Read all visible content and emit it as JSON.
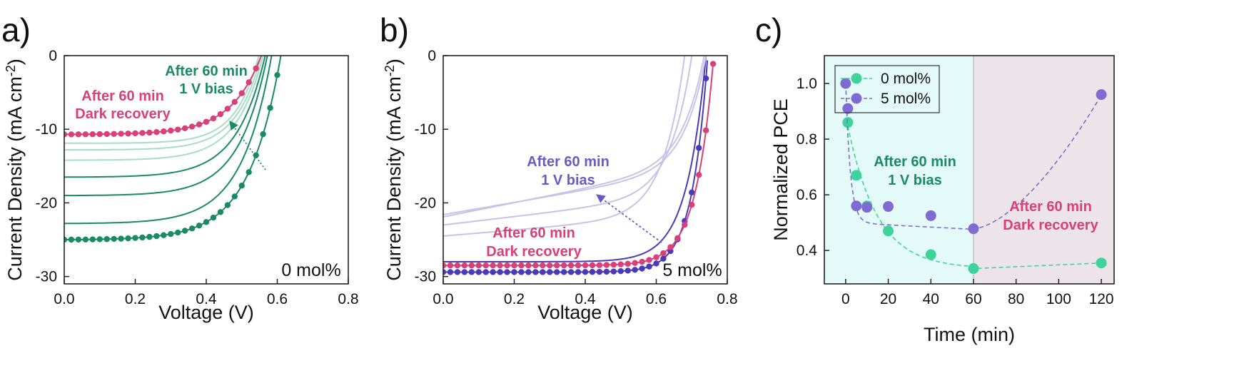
{
  "figure": {
    "panels": [
      {
        "letter": "a)"
      },
      {
        "letter": "b)"
      },
      {
        "letter": "c)"
      }
    ]
  },
  "colors": {
    "green_dark": "#1a8a66",
    "green_light": "#a8dcc8",
    "pink": "#d9407a",
    "purple_dark": "#4a3ab8",
    "purple_light": "#c8c2e6",
    "teal_marker": "#3fd39c",
    "violet_marker": "#7f6bd2",
    "cyan_bg": "#e4faf8",
    "gray_bg": "#ece4e8"
  },
  "chart_data": [
    {
      "type": "line",
      "panel": "a)",
      "xlabel": "Voltage (V)",
      "ylabel_main": "Current Density (mA cm",
      "ylabel_sup": "-2",
      "ylabel_close": ")",
      "xlim": [
        0.0,
        0.8
      ],
      "ylim": [
        -31,
        0
      ],
      "xticks": [
        0.0,
        0.2,
        0.4,
        0.6,
        0.8
      ],
      "xtick_labels": [
        "0.0",
        "0.2",
        "0.4",
        "0.6",
        "0.8"
      ],
      "yticks": [
        0,
        -10,
        -20,
        -30
      ],
      "ytick_labels": [
        "0",
        "-10",
        "-20",
        "-30"
      ],
      "corner_label": "0 mol%",
      "annotations": [
        {
          "line1": "After 60 min",
          "line2": "1 V bias",
          "color": "green"
        },
        {
          "line1": "After 60 min",
          "line2": "Dark recovery",
          "color": "pink"
        }
      ],
      "series": [
        {
          "role": "initial",
          "style": "markers",
          "color_key": "green_dark",
          "jsc": -25.0,
          "voc": 0.61,
          "n": 0.09
        },
        {
          "role": "during bias",
          "style": "line",
          "color_key": "green_dark",
          "jsc": -22.8,
          "voc": 0.584,
          "n": 0.085
        },
        {
          "role": "during bias",
          "style": "line",
          "color_key": "green_dark",
          "jsc": -19.0,
          "voc": 0.572,
          "n": 0.08
        },
        {
          "role": "during bias",
          "style": "line",
          "color_key": "green_dark",
          "jsc": -16.5,
          "voc": 0.566,
          "n": 0.08
        },
        {
          "role": "during bias",
          "style": "line",
          "color_key": "green_light",
          "jsc": -14.2,
          "voc": 0.56,
          "n": 0.075
        },
        {
          "role": "during bias",
          "style": "line",
          "color_key": "green_light",
          "jsc": -12.8,
          "voc": 0.555,
          "n": 0.07
        },
        {
          "role": "after 60 min bias",
          "style": "line",
          "color_key": "green_light",
          "jsc": -11.9,
          "voc": 0.548,
          "n": 0.065
        },
        {
          "role": "after 60 min dark recovery",
          "style": "markers",
          "color_key": "pink",
          "jsc": -10.7,
          "voc": 0.555,
          "n": 0.085
        }
      ]
    },
    {
      "type": "line",
      "panel": "b)",
      "xlabel": "Voltage (V)",
      "ylabel_main": "Current Density (mA cm",
      "ylabel_sup": "-2",
      "ylabel_close": ")",
      "xlim": [
        0.0,
        0.8
      ],
      "ylim": [
        -31,
        0
      ],
      "xticks": [
        0.0,
        0.2,
        0.4,
        0.6,
        0.8
      ],
      "xtick_labels": [
        "0.0",
        "0.2",
        "0.4",
        "0.6",
        "0.8"
      ],
      "yticks": [
        0,
        -10,
        -20,
        -30
      ],
      "ytick_labels": [
        "0",
        "-10",
        "-20",
        "-30"
      ],
      "corner_label": "5 mol%",
      "annotations": [
        {
          "line1": "After 60 min",
          "line2": "1 V bias",
          "color": "purple"
        },
        {
          "line1": "After 60 min",
          "line2": "Dark recovery",
          "color": "pink"
        }
      ],
      "series": [
        {
          "role": "initial",
          "style": "markers",
          "color_key": "purple_dark",
          "jsc": -29.4,
          "voc": 0.745,
          "n": 0.045
        },
        {
          "role": "after 60 min dark recovery",
          "style": "markers",
          "color_key": "pink",
          "jsc": -28.5,
          "voc": 0.762,
          "n": 0.05
        },
        {
          "role": "during bias",
          "style": "line",
          "color_key": "purple_dark",
          "jsc": -28.0,
          "voc": 0.74,
          "n": 0.055
        },
        {
          "role": "during bias",
          "style": "line",
          "color_key": "purple_light",
          "jsc": -21.9,
          "voc": 0.735,
          "slope": 0.16
        },
        {
          "role": "during bias",
          "style": "line",
          "color_key": "purple_light",
          "jsc": -21.6,
          "voc": 0.74,
          "slope": 0.14
        },
        {
          "role": "during bias",
          "style": "line",
          "color_key": "purple_light",
          "jsc": -23.0,
          "voc": 0.7,
          "slope": 0.09
        },
        {
          "role": "after 60 min bias",
          "style": "line",
          "color_key": "purple_light",
          "jsc": -24.5,
          "voc": 0.68,
          "slope": 0.06
        }
      ]
    },
    {
      "type": "scatter",
      "panel": "c)",
      "xlabel": "Time (min)",
      "ylabel": "Normalized PCE",
      "xlim": [
        -10,
        126
      ],
      "ylim": [
        0.28,
        1.1
      ],
      "xticks": [
        0,
        20,
        40,
        60,
        80,
        100,
        120
      ],
      "xtick_labels": [
        "0",
        "20",
        "40",
        "60",
        "80",
        "100",
        "120"
      ],
      "yticks": [
        0.4,
        0.6,
        0.8,
        1.0
      ],
      "ytick_labels": [
        "0.4",
        "0.6",
        "0.8",
        "1.0"
      ],
      "shaded_regions": [
        {
          "from": -10,
          "to": 60,
          "line1": "After 60 min",
          "line2": "1 V bias",
          "color": "green"
        },
        {
          "from": 60,
          "to": 126,
          "line1": "After 60 min",
          "line2": "Dark recovery",
          "color": "pink"
        }
      ],
      "legend_position": "top-left",
      "series": [
        {
          "name": "0 mol%",
          "color_key": "teal_marker",
          "x": [
            1,
            5,
            10,
            20,
            40,
            60,
            120
          ],
          "y": [
            0.86,
            0.67,
            0.56,
            0.47,
            0.385,
            0.335,
            0.355
          ]
        },
        {
          "name": "5 mol%",
          "color_key": "violet_marker",
          "x": [
            0,
            1,
            5,
            10,
            20,
            40,
            60,
            120
          ],
          "y": [
            1.0,
            0.91,
            0.56,
            0.555,
            0.558,
            0.525,
            0.478,
            0.96
          ]
        }
      ]
    }
  ]
}
